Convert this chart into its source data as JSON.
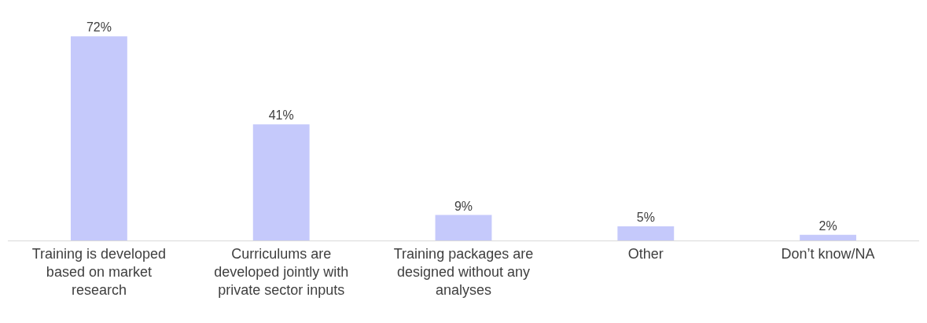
{
  "chart_data": {
    "type": "bar",
    "categories": [
      "Training is developed based on market research",
      "Curriculums are developed jointly with private sector inputs",
      "Training packages are designed without any analyses",
      "Other",
      "Don’t know/NA"
    ],
    "values": [
      72,
      41,
      9,
      5,
      2
    ],
    "value_labels": [
      "72%",
      "41%",
      "9%",
      "5%",
      "2%"
    ],
    "color": "#c5c9fb"
  }
}
